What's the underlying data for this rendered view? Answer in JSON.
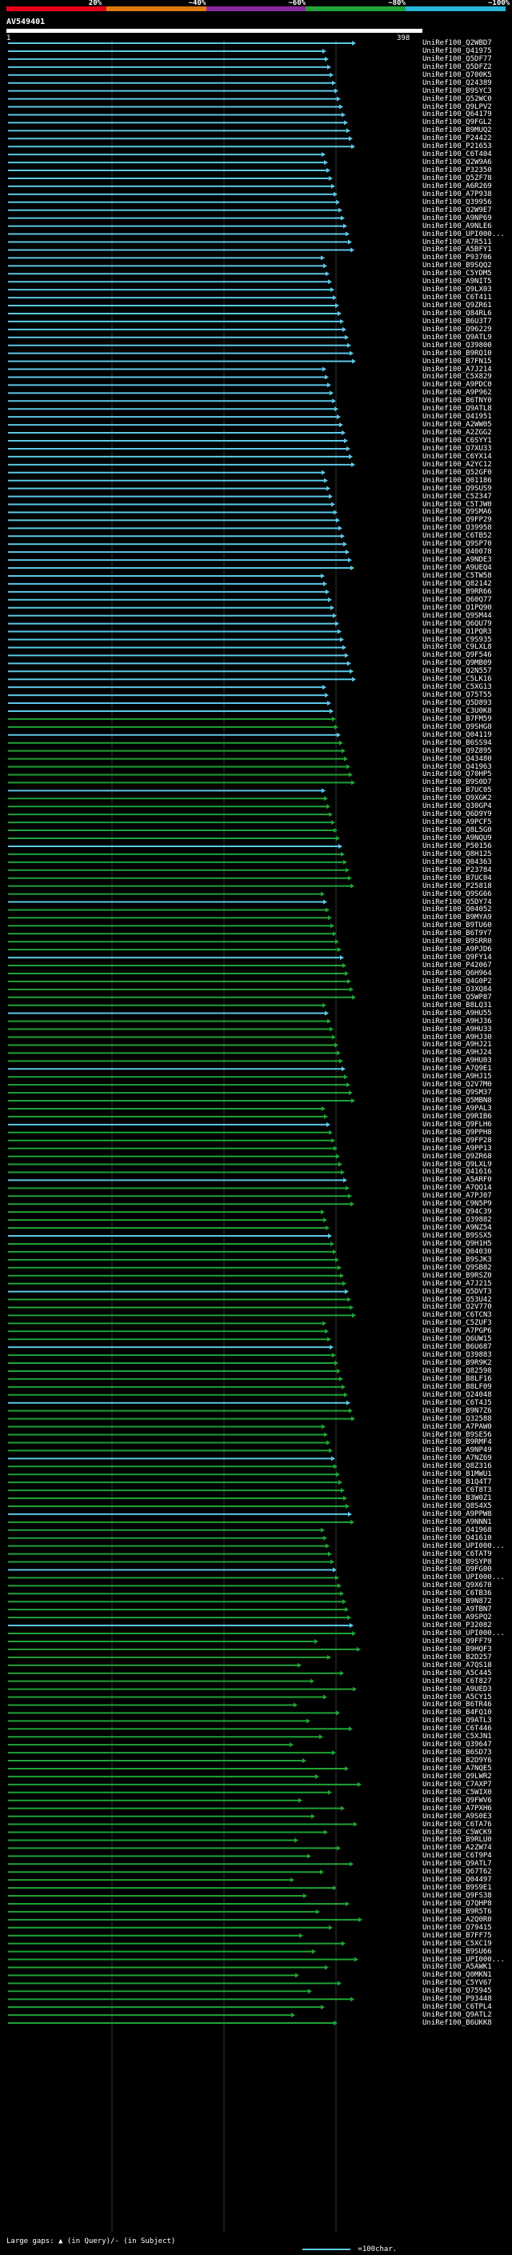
{
  "legend": {
    "segments": [
      {
        "label": "20%",
        "color": "#e8001a"
      },
      {
        "label": "~40%",
        "color": "#e07a10"
      },
      {
        "label": "~60%",
        "color": "#8a2aa0"
      },
      {
        "label": "~80%",
        "color": "#21a33a"
      },
      {
        "label": "~100%",
        "color": "#27b8d8"
      }
    ]
  },
  "query": {
    "title": "AV549401",
    "start": "1",
    "end": "398"
  },
  "hits": [
    "UniRef100_Q2WBD7",
    "UniRef100_Q41975",
    "UniRef100_Q5DF77",
    "UniRef100_Q5DFZ2",
    "UniRef100_Q700K5",
    "UniRef100_Q24389",
    "UniRef100_B9SYC3",
    "UniRef100_Q52WC0",
    "UniRef100_Q9LPV2",
    "UniRef100_Q64179",
    "UniRef100_Q9FGL2",
    "UniRef100_B9MUQ2",
    "UniRef100_P24422",
    "UniRef100_P21653",
    "UniRef100_C6T404",
    "UniRef100_Q2W9A6",
    "UniRef100_P32350",
    "UniRef100_Q5ZF78",
    "UniRef100_A6R269",
    "UniRef100_A7P938",
    "UniRef100_Q39956",
    "UniRef100_Q2W9E7",
    "UniRef100_A9NP69",
    "UniRef100_A9NLE6",
    "UniRef100_UPI000...",
    "UniRef100_A7R511",
    "UniRef100_A5BFY1",
    "UniRef100_P93706",
    "UniRef100_B9SQQ2",
    "UniRef100_C5YDM5",
    "UniRef100_A9NIT5",
    "UniRef100_Q9LX03",
    "UniRef100_C6T411",
    "UniRef100_Q9ZR61",
    "UniRef100_Q84RL6",
    "UniRef100_B6U3T7",
    "UniRef100_Q96229",
    "UniRef100_Q9ATL9",
    "UniRef100_Q39800",
    "UniRef100_B9RQ10",
    "UniRef100_B7FN15",
    "UniRef100_A7J214",
    "UniRef100_C5X829",
    "UniRef100_A9PDC0",
    "UniRef100_A9P962",
    "UniRef100_B6TNY0",
    "UniRef100_Q9ATL8",
    "UniRef100_Q41951",
    "UniRef100_A2WW05",
    "UniRef100_A2ZGG2",
    "UniRef100_C6SYY1",
    "UniRef100_Q7XU33",
    "UniRef100_C6YX14",
    "UniRef100_A2YC12",
    "UniRef100_Q52GF0",
    "UniRef100_Q01186",
    "UniRef100_Q9SUS9",
    "UniRef100_C5Z347",
    "UniRef100_C5TJW0",
    "UniRef100_Q9SMA6",
    "UniRef100_Q9FP29",
    "UniRef100_Q39958",
    "UniRef100_C6TB52",
    "UniRef100_Q9SP70",
    "UniRef100_Q40078",
    "UniRef100_A9NDE3",
    "UniRef100_A9UEQ4",
    "UniRef100_C5TW58",
    "UniRef100_Q82142",
    "UniRef100_B9RR66",
    "UniRef100_Q60Q77",
    "UniRef100_Q1PQ90",
    "UniRef100_Q9SM44",
    "UniRef100_Q6QU79",
    "UniRef100_Q1PQR3",
    "UniRef100_C9S935",
    "UniRef100_C9LXL8",
    "UniRef100_Q9F546",
    "UniRef100_Q9MB09",
    "UniRef100_Q2N557",
    "UniRef100_C5LK16",
    "UniRef100_C5XG13",
    "UniRef100_Q75T55",
    "UniRef100_Q5D893",
    "UniRef100_C3U0K8",
    "UniRef100_B7FM59",
    "UniRef100_Q9SHG8",
    "UniRef100_Q04119",
    "UniRef100_B6SS94",
    "UniRef100_Q9Z895",
    "UniRef100_Q43480",
    "UniRef100_Q41963",
    "UniRef100_Q70HP5",
    "UniRef100_B9S0D7",
    "UniRef100_B7UC05",
    "UniRef100_Q9XGK2",
    "UniRef100_Q30GP4",
    "UniRef100_Q6D9Y9",
    "UniRef100_A9PCF5",
    "UniRef100_Q8L5G0",
    "UniRef100_A9NQU9",
    "UniRef100_P50156",
    "UniRef100_Q8H125",
    "UniRef100_Q04363",
    "UniRef100_P23784",
    "UniRef100_B7UC04",
    "UniRef100_P25818",
    "UniRef100_Q9SG66",
    "UniRef100_Q5DY74",
    "UniRef100_Q04052",
    "UniRef100_B9MYA9",
    "UniRef100_B9TU60",
    "UniRef100_B6T9Y7",
    "UniRef100_B9SRR0",
    "UniRef100_A9PJD6",
    "UniRef100_Q9FY14",
    "UniRef100_P42067",
    "UniRef100_Q6H964",
    "UniRef100_Q4G0P2",
    "UniRef100_Q3XQ84",
    "UniRef100_Q5WP87",
    "UniRef100_B8LQ31",
    "UniRef100_A9HU55",
    "UniRef100_A9HJ36",
    "UniRef100_A9HU33",
    "UniRef100_A9HJ30",
    "UniRef100_A9HJ21",
    "UniRef100_A9HJ24",
    "UniRef100_A9HU03",
    "UniRef100_A7Q9E1",
    "UniRef100_A9HJ15",
    "UniRef100_Q2V7M0",
    "UniRef100_Q9SM37",
    "UniRef100_Q5MBN8",
    "UniRef100_A9PAL3",
    "UniRef100_Q9RIB6",
    "UniRef100_Q9FLH6",
    "UniRef100_Q9PPH8",
    "UniRef100_Q9FP28",
    "UniRef100_A9PP13",
    "UniRef100_Q9ZR68",
    "UniRef100_Q9LXL9",
    "UniRef100_Q41616",
    "UniRef100_A5ARF0",
    "UniRef100_A7QQ14",
    "UniRef100_A7PJ07",
    "UniRef100_C9N5P9",
    "UniRef100_Q94C39",
    "UniRef100_Q39882",
    "UniRef100_A9NZ54",
    "UniRef100_B9SSX5",
    "UniRef100_Q9H1H5",
    "UniRef100_Q04030",
    "UniRef100_B9SJK3",
    "UniRef100_Q9SB82",
    "UniRef100_B9RSZ0",
    "UniRef100_A7J215",
    "UniRef100_Q5DVT3",
    "UniRef100_Q53U42",
    "UniRef100_Q2V770",
    "UniRef100_C6TCN3",
    "UniRef100_C5ZUF3",
    "UniRef100_A7PGP6",
    "UniRef100_Q6UW15",
    "UniRef100_B6U687",
    "UniRef100_Q39883",
    "UniRef100_B9R9K2",
    "UniRef100_Q82598",
    "UniRef100_B8LF16",
    "UniRef100_B8LF09",
    "UniRef100_Q24048",
    "UniRef100_C6T4J5",
    "UniRef100_B9N7Z6",
    "UniRef100_Q32588",
    "UniRef100_A7PAW0",
    "UniRef100_B9SE56",
    "UniRef100_B9RMF4",
    "UniRef100_A9NP49",
    "UniRef100_A7NZ69",
    "UniRef100_Q8Z316",
    "UniRef100_B1MWU1",
    "UniRef100_B1Q4T7",
    "UniRef100_C6T8T3",
    "UniRef100_B3W0Z1",
    "UniRef100_Q8S4X5",
    "UniRef100_A9PPW8",
    "UniRef100_A9NNN1",
    "UniRef100_Q41968",
    "UniRef100_Q41610",
    "UniRef100_UPI000...",
    "UniRef100_C6TAT9",
    "UniRef100_B9SYP8",
    "UniRef100_Q9FG00",
    "UniRef100_UPI000...",
    "UniRef100_Q9X670",
    "UniRef100_C6TB36",
    "UniRef100_B9N872",
    "UniRef100_A9TBN7",
    "UniRef100_A9SPQ2",
    "UniRef100_P32082",
    "UniRef100_UPI000...",
    "UniRef100_Q9FF79",
    "UniRef100_B9HQF3",
    "UniRef100_B2D257",
    "UniRef100_A7QS18",
    "UniRef100_A5C445",
    "UniRef100_C6T827",
    "UniRef100_A9UED3",
    "UniRef100_A5CY15",
    "UniRef100_B6TR46",
    "UniRef100_B4FQ10",
    "UniRef100_Q9ATL3",
    "UniRef100_C6T446",
    "UniRef100_C5XJN1",
    "UniRef100_Q39647",
    "UniRef100_B6SD73",
    "UniRef100_B2D9Y6",
    "UniRef100_A7NQE5",
    "UniRef100_Q9LWR2",
    "UniRef100_C7AXP7",
    "UniRef100_C5WIX0",
    "UniRef100_Q9FWV6",
    "UniRef100_A7PXH6",
    "UniRef100_A9S0E3",
    "UniRef100_C6TA76",
    "UniRef100_C5WCK9",
    "UniRef100_B9RLU0",
    "UniRef100_A2ZW74",
    "UniRef100_C6T9P4",
    "UniRef100_Q9ATL7",
    "UniRef100_Q67T62",
    "UniRef100_Q04497",
    "UniRef100_B9S9E1",
    "UniRef100_Q9FS38",
    "UniRef100_Q7QHP8",
    "UniRef100_B9R5T6",
    "UniRef100_A2Q0R0",
    "UniRef100_Q79415",
    "UniRef100_B7FF75",
    "UniRef100_C5XC19",
    "UniRef100_B9SU66",
    "UniRef100_UPI000...",
    "UniRef100_A5AWK1",
    "UniRef100_Q0MKN1",
    "UniRef100_C5YV67",
    "UniRef100_Q75945",
    "UniRef100_P93448",
    "UniRef100_C6TPL4",
    "UniRef100_Q9ATL2",
    "UniRef100_B6UKK8"
  ],
  "bottom_legend": {
    "gaps_text": "Large gaps: ▲ (in Query)/- (in Subject)",
    "scale_text": "=100char."
  }
}
